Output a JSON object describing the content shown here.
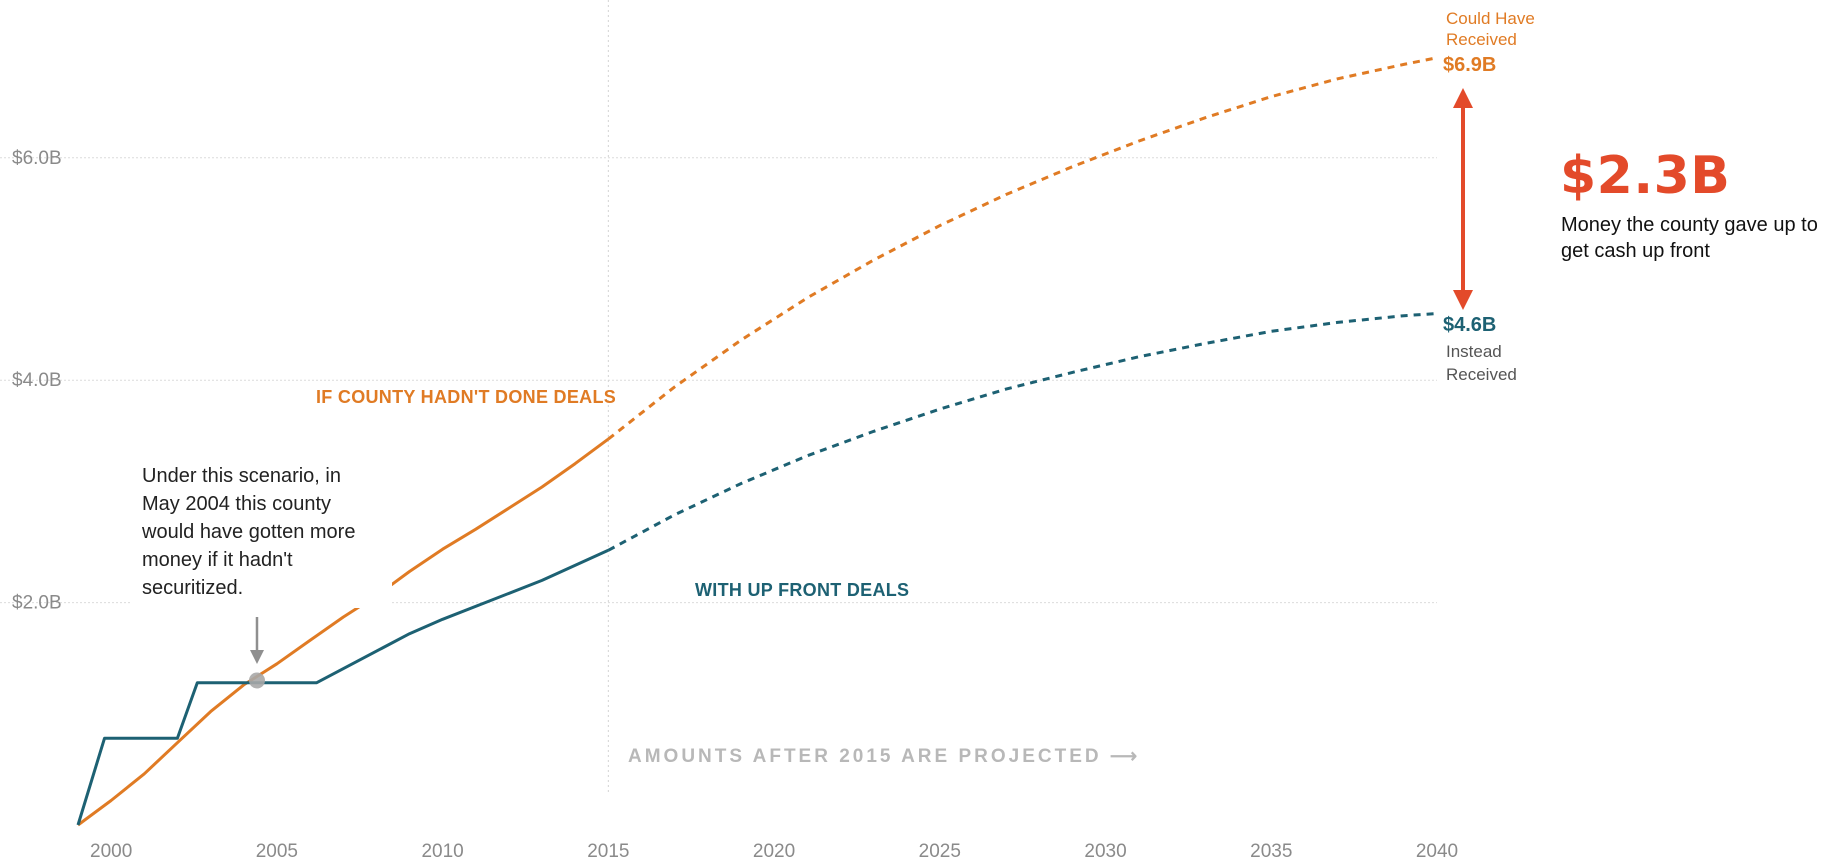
{
  "chart_data": {
    "type": "line",
    "x_ticks": [
      "2000",
      "2005",
      "2010",
      "2015",
      "2020",
      "2025",
      "2030",
      "2035",
      "2040"
    ],
    "y_ticks": [
      "$2.0B",
      "$4.0B",
      "$6.0B"
    ],
    "y_unit": "billions of dollars",
    "xlim": [
      1999,
      2040
    ],
    "ylim": [
      0,
      7.4
    ],
    "grid": "horizontal",
    "projection_start": 2015,
    "projected_note": "AMOUNTS AFTER 2015 ARE PROJECTED ⟶",
    "series": [
      {
        "name": "IF COUNTY HADN'T DONE DEALS",
        "color": "#e07b24",
        "actual": [
          [
            1999,
            0.0
          ],
          [
            2000,
            0.22
          ],
          [
            2001,
            0.46
          ],
          [
            2002,
            0.74
          ],
          [
            2003,
            1.02
          ],
          [
            2004,
            1.26
          ],
          [
            2005,
            1.45
          ],
          [
            2006,
            1.66
          ],
          [
            2007,
            1.87
          ],
          [
            2008,
            2.06
          ],
          [
            2009,
            2.28
          ],
          [
            2010,
            2.48
          ],
          [
            2011,
            2.66
          ],
          [
            2012,
            2.85
          ],
          [
            2013,
            3.04
          ],
          [
            2014,
            3.25
          ],
          [
            2015,
            3.47
          ]
        ],
        "projected": [
          [
            2015,
            3.47
          ],
          [
            2017,
            3.94
          ],
          [
            2019,
            4.36
          ],
          [
            2021,
            4.74
          ],
          [
            2023,
            5.08
          ],
          [
            2025,
            5.39
          ],
          [
            2027,
            5.67
          ],
          [
            2029,
            5.92
          ],
          [
            2031,
            6.15
          ],
          [
            2033,
            6.36
          ],
          [
            2035,
            6.55
          ],
          [
            2037,
            6.71
          ],
          [
            2039,
            6.84
          ],
          [
            2040,
            6.9
          ]
        ]
      },
      {
        "name": "WITH UP FRONT DEALS",
        "color": "#1d6173",
        "actual": [
          [
            1999,
            0.0
          ],
          [
            1999.8,
            0.78
          ],
          [
            2002,
            0.78
          ],
          [
            2002.6,
            1.28
          ],
          [
            2006.2,
            1.28
          ],
          [
            2009,
            1.72
          ],
          [
            2010,
            1.85
          ],
          [
            2013,
            2.2
          ],
          [
            2015,
            2.47
          ]
        ],
        "projected": [
          [
            2015,
            2.47
          ],
          [
            2017,
            2.79
          ],
          [
            2019,
            3.07
          ],
          [
            2021,
            3.32
          ],
          [
            2023,
            3.54
          ],
          [
            2025,
            3.74
          ],
          [
            2027,
            3.92
          ],
          [
            2029,
            4.07
          ],
          [
            2031,
            4.21
          ],
          [
            2033,
            4.33
          ],
          [
            2035,
            4.44
          ],
          [
            2037,
            4.52
          ],
          [
            2039,
            4.58
          ],
          [
            2040,
            4.6
          ]
        ]
      }
    ],
    "crossover_point": [
      2004.4,
      1.3
    ],
    "end_labels": {
      "top_caption_line1": "Could Have",
      "top_caption_line2": "Received",
      "top_value": "$6.9B",
      "bottom_value": "$4.6B",
      "bottom_caption_line1": "Instead",
      "bottom_caption_line2": "Received"
    },
    "gap": {
      "value": "$2.3B",
      "caption": "Money the county gave up to get cash up front",
      "color": "#e34a2a"
    },
    "annotation": {
      "text": "Under this scenario, in May 2004 this county would have gotten more money if it hadn't securitized."
    }
  }
}
